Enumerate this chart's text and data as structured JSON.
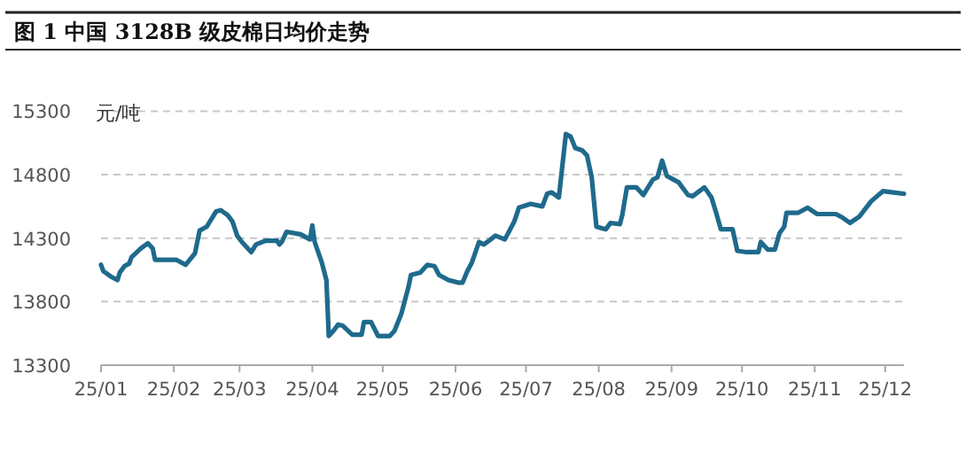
{
  "chart_data": {
    "type": "line",
    "title": "图 1 中国 3128B 级皮棉日均价走势",
    "ylabel": "元/吨",
    "x": [
      "--01-01",
      "--01-02",
      "--01-05",
      "--01-08",
      "--01-09",
      "--01-11",
      "--01-13",
      "--01-14",
      "--01-18",
      "--01-21",
      "--01-23",
      "--01-24",
      "--02-02",
      "--02-06",
      "--02-10",
      "--02-12",
      "--02-15",
      "--02-19",
      "--02-21",
      "--02-24",
      "--02-26",
      "--02-28",
      "--03-02",
      "--03-06",
      "--03-08",
      "--03-12",
      "--03-17",
      "--03-18",
      "--03-19",
      "--03-21",
      "--03-27",
      "--03-31",
      "--04-01",
      "--04-02",
      "--04-05",
      "--04-07",
      "--04-08",
      "--04-10",
      "--04-12",
      "--04-14",
      "--04-18",
      "--04-22",
      "--04-23",
      "--04-26",
      "--04-29",
      "--05-04",
      "--05-06",
      "--05-09",
      "--05-12",
      "--05-13",
      "--05-17",
      "--05-20",
      "--05-23",
      "--05-25",
      "--05-29",
      "--06-02",
      "--06-04",
      "--06-06",
      "--06-08",
      "--06-11",
      "--06-13",
      "--06-16",
      "--06-18",
      "--06-22",
      "--06-26",
      "--06-28",
      "--07-03",
      "--07-08",
      "--07-10",
      "--07-12",
      "--07-15",
      "--07-18",
      "--07-20",
      "--07-22",
      "--07-25",
      "--07-27",
      "--07-29",
      "--07-31",
      "--08-04",
      "--08-06",
      "--08-10",
      "--08-11",
      "--08-13",
      "--08-17",
      "--08-20",
      "--08-24",
      "--08-26",
      "--08-28",
      "--08-30",
      "--09-01",
      "--09-04",
      "--09-08",
      "--09-10",
      "--09-15",
      "--09-18",
      "--09-20",
      "--09-22",
      "--09-27",
      "--09-29",
      "--10-03",
      "--10-08",
      "--10-09",
      "--10-12",
      "--10-15",
      "--10-17",
      "--10-19",
      "--10-20",
      "--10-25",
      "--10-29",
      "--11-02",
      "--11-10",
      "--11-13",
      "--11-16",
      "--11-20",
      "--11-25",
      "--11-30",
      "--12-09"
    ],
    "series": [
      {
        "color": "#1f6a8c",
        "values": [
          14090,
          14040,
          14000,
          13970,
          14030,
          14080,
          14100,
          14150,
          14220,
          14260,
          14220,
          14130,
          14130,
          14090,
          14180,
          14360,
          14390,
          14510,
          14520,
          14480,
          14430,
          14320,
          14270,
          14190,
          14250,
          14280,
          14280,
          14250,
          14270,
          14350,
          14330,
          14290,
          14400,
          14270,
          14110,
          13970,
          13530,
          13570,
          13620,
          13610,
          13540,
          13540,
          13640,
          13640,
          13530,
          13530,
          13570,
          13710,
          13920,
          14010,
          14030,
          14090,
          14080,
          14010,
          13970,
          13950,
          13950,
          14040,
          14110,
          14270,
          14250,
          14290,
          14320,
          14290,
          14430,
          14540,
          14570,
          14550,
          14650,
          14660,
          14620,
          15120,
          15100,
          15010,
          14990,
          14950,
          14780,
          14390,
          14370,
          14420,
          14410,
          14480,
          14700,
          14700,
          14640,
          14760,
          14780,
          14910,
          14790,
          14770,
          14740,
          14640,
          14630,
          14700,
          14620,
          14500,
          14370,
          14370,
          14200,
          14190,
          14190,
          14270,
          14210,
          14210,
          14340,
          14390,
          14500,
          14500,
          14540,
          14490,
          14490,
          14460,
          14420,
          14470,
          14590,
          14670,
          14650
        ]
      }
    ],
    "xlim": [
      "--01-01",
      "--12-09"
    ],
    "xticks": [
      {
        "value": "--01-01",
        "label": "25/01"
      },
      {
        "value": "--02-01",
        "label": "25/02"
      },
      {
        "value": "--03-01",
        "label": "25/03"
      },
      {
        "value": "--04-01",
        "label": "25/04"
      },
      {
        "value": "--05-01",
        "label": "25/05"
      },
      {
        "value": "--06-01",
        "label": "25/06"
      },
      {
        "value": "--07-01",
        "label": "25/07"
      },
      {
        "value": "--08-01",
        "label": "25/08"
      },
      {
        "value": "--09-01",
        "label": "25/09"
      },
      {
        "value": "--10-01",
        "label": "25/10"
      },
      {
        "value": "--11-01",
        "label": "25/11"
      },
      {
        "value": "--12-01",
        "label": "25/12"
      }
    ],
    "ylim": [
      13300,
      15300
    ],
    "yticks": [
      13300,
      13800,
      14300,
      14800,
      15300
    ],
    "grid": "y"
  }
}
